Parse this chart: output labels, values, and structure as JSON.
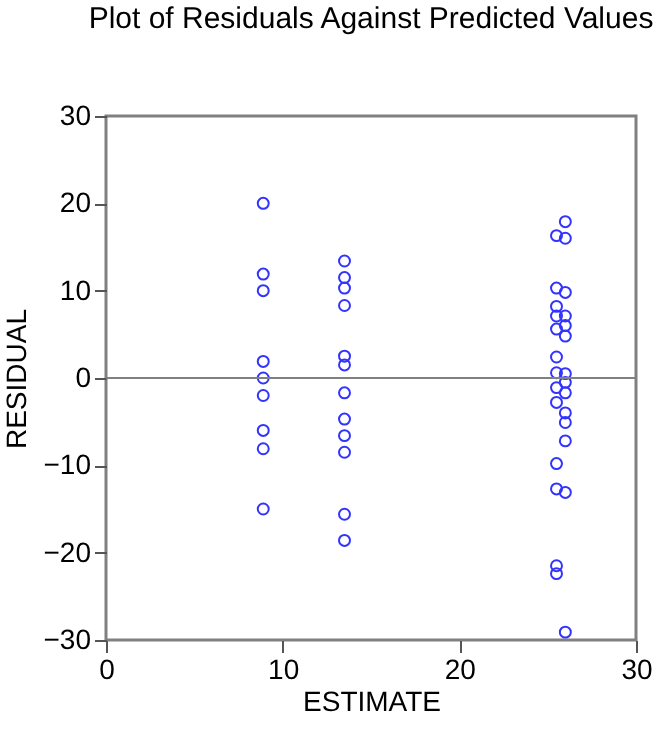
{
  "chart_data": {
    "type": "scatter",
    "title": "Plot of Residuals Against Predicted Values",
    "xlabel": "ESTIMATE",
    "ylabel": "RESIDUAL",
    "xlim": [
      0,
      30
    ],
    "xticks": [
      0,
      10,
      20,
      30
    ],
    "ylim": [
      -30,
      30
    ],
    "yticks": [
      -30,
      -20,
      -10,
      0,
      10,
      20,
      30
    ],
    "grid": false,
    "marker": "circle",
    "ref_lines": [
      {
        "axis": "y",
        "value": 0,
        "color": "#808080"
      }
    ],
    "series": [
      {
        "color": "#3333ff",
        "x": [
          8.9,
          8.9,
          8.9,
          8.9,
          8.9,
          8.9,
          8.9,
          8.9,
          8.9,
          13.5,
          13.5,
          13.5,
          13.5,
          13.5,
          13.5,
          13.5,
          13.5,
          13.5,
          13.5,
          13.5,
          13.5,
          26,
          26,
          25.5,
          25.5,
          26,
          25.5,
          25.5,
          26,
          26,
          25.5,
          26,
          25.5,
          25.5,
          26,
          26,
          25.5,
          26,
          25.5,
          26,
          26,
          26,
          25.5,
          25.5,
          26,
          25.5,
          25.5,
          26
        ],
        "values": [
          20,
          11.9,
          10,
          1.9,
          0,
          -2,
          -6,
          -8.1,
          -15,
          13.4,
          11.5,
          10.3,
          8.3,
          2.5,
          1.5,
          -1.7,
          -4.7,
          -6.6,
          -8.5,
          -15.6,
          -18.6,
          17.9,
          16,
          16.3,
          10.3,
          9.8,
          8.2,
          7.1,
          7.1,
          6,
          5.6,
          4.8,
          2.4,
          0.6,
          0.5,
          -0.5,
          -1.1,
          -1.7,
          -2.8,
          -4,
          -5.1,
          -7.2,
          -9.8,
          -12.7,
          -13.1,
          -21.5,
          -22.4,
          -29.1
        ]
      }
    ]
  }
}
